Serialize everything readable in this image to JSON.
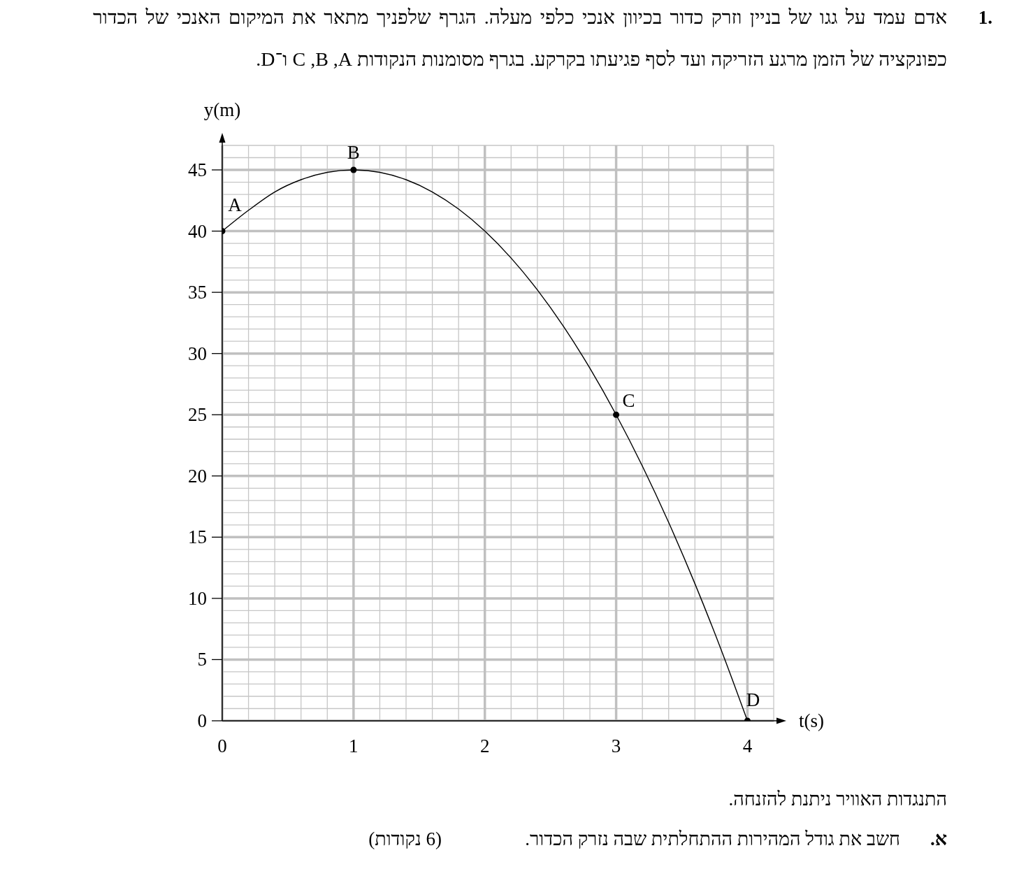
{
  "chart_data": {
    "type": "line",
    "title": "אדם עמד על גגו של בניין וזרק כדור בכיוון אנכי כלפי מעלה. הגרף שלפניך מתאר את המיקום האנכי של הכדור כפונקציה של הזמן מרגע הזריקה ועד לסף פגיעתו בקרקע. בגרף מסומנות הנקודות A, B, C ו־D.",
    "xlabel": "t(s)",
    "ylabel": "y(m)",
    "xlim": [
      0,
      4.2
    ],
    "ylim": [
      0,
      47
    ],
    "xticks": [
      0,
      {
        "value": 0.2,
        "label": null
      },
      {
        "value": 0.4,
        "label": null
      },
      {
        "value": 0.6,
        "label": null
      },
      {
        "value": 0.8,
        "label": null
      },
      1,
      {
        "value": 1.2,
        "label": null
      },
      {
        "value": 1.4,
        "label": null
      },
      {
        "value": 1.6,
        "label": null
      },
      {
        "value": 1.8,
        "label": null
      },
      2,
      {
        "value": 2.2,
        "label": null
      },
      {
        "value": 2.4,
        "label": null
      },
      {
        "value": 2.6,
        "label": null
      },
      {
        "value": 2.8,
        "label": null
      },
      3,
      {
        "value": 3.2,
        "label": null
      },
      {
        "value": 3.4,
        "label": null
      },
      {
        "value": 3.6,
        "label": null
      },
      {
        "value": 3.8,
        "label": null
      },
      4,
      {
        "value": 4.2,
        "label": null
      }
    ],
    "yticks": [
      0,
      {
        "value": 1,
        "label": null
      },
      {
        "value": 2,
        "label": null
      },
      {
        "value": 3,
        "label": null
      },
      {
        "value": 4,
        "label": null
      },
      5,
      {
        "value": 6,
        "label": null
      },
      {
        "value": 7,
        "label": null
      },
      {
        "value": 8,
        "label": null
      },
      {
        "value": 9,
        "label": null
      },
      10,
      {
        "value": 11,
        "label": null
      },
      {
        "value": 12,
        "label": null
      },
      {
        "value": 13,
        "label": null
      },
      {
        "value": 14,
        "label": null
      },
      15,
      {
        "value": 16,
        "label": null
      },
      {
        "value": 17,
        "label": null
      },
      {
        "value": 18,
        "label": null
      },
      {
        "value": 19,
        "label": null
      },
      20,
      {
        "value": 21,
        "label": null
      },
      {
        "value": 22,
        "label": null
      },
      {
        "value": 23,
        "label": null
      },
      {
        "value": 24,
        "label": null
      },
      25,
      {
        "value": 26,
        "label": null
      },
      {
        "value": 27,
        "label": null
      },
      {
        "value": 28,
        "label": null
      },
      {
        "value": 29,
        "label": null
      },
      30,
      {
        "value": 31,
        "label": null
      },
      {
        "value": 32,
        "label": null
      },
      {
        "value": 33,
        "label": null
      },
      {
        "value": 34,
        "label": null
      },
      35,
      {
        "value": 36,
        "label": null
      },
      {
        "value": 37,
        "label": null
      },
      {
        "value": 38,
        "label": null
      },
      {
        "value": 39,
        "label": null
      },
      40,
      {
        "value": 41,
        "label": null
      },
      {
        "value": 42,
        "label": null
      },
      {
        "value": 43,
        "label": null
      },
      {
        "value": 44,
        "label": null
      },
      45,
      {
        "value": 46,
        "label": null
      },
      {
        "value": 47,
        "label": null
      }
    ],
    "grid": true,
    "series": [
      {
        "type": "line",
        "color": "#000000",
        "marker": "none",
        "x": [
          0,
          0.2,
          0.4,
          0.6,
          0.8,
          1,
          1.2,
          1.4,
          1.6,
          1.8,
          2,
          2.2,
          2.4,
          2.6,
          2.8,
          3,
          3.2,
          3.4,
          3.6,
          3.8,
          4
        ],
        "values": [
          40,
          41.7,
          43.2,
          44.2,
          44.8,
          45,
          44.8,
          44.2,
          43.2,
          41.8,
          40,
          37.8,
          35.2,
          32.2,
          28.8,
          25,
          20.8,
          16.2,
          11.2,
          5.8,
          0
        ]
      },
      {
        "type": "scatter",
        "color": "#000000",
        "marker": "circle",
        "x": [
          0,
          1,
          3,
          4
        ],
        "values": [
          40,
          45,
          25,
          0
        ]
      }
    ],
    "annotations": [
      "1.",
      {
        "text": "A",
        "x": 0,
        "y": 40
      },
      {
        "text": "B",
        "x": 1,
        "y": 45
      },
      {
        "text": "C",
        "x": 3,
        "y": 25
      },
      {
        "text": "D",
        "x": 4,
        "y": 0
      },
      "התנגדות האוויר ניתנת להזנחה.",
      "א.",
      "חשב את גודל המהירות ההתחלתית שבה נזרק הכדור.",
      "(6 נקודות)"
    ]
  }
}
